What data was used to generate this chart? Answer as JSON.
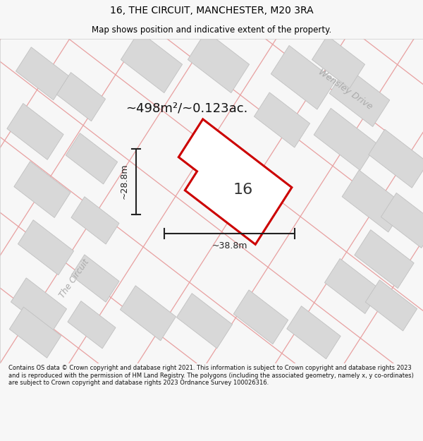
{
  "title": "16, THE CIRCUIT, MANCHESTER, M20 3RA",
  "subtitle": "Map shows position and indicative extent of the property.",
  "area_text": "~498m²/~0.123ac.",
  "width_label": "~38.8m",
  "height_label": "~28.8m",
  "number_label": "16",
  "wensley_drive_label": "Wensley Drive",
  "the_circuit_label": "The Circuit",
  "footer_text": "Contains OS data © Crown copyright and database right 2021. This information is subject to Crown copyright and database rights 2023 and is reproduced with the permission of HM Land Registry. The polygons (including the associated geometry, namely x, y co-ordinates) are subject to Crown copyright and database rights 2023 Ordnance Survey 100026316.",
  "bg_color": "#f7f7f7",
  "map_bg_color": "#f2f2f2",
  "plot_fill_color": "#ffffff",
  "plot_border_color": "#cc0000",
  "road_line_color": "#e8a0a0",
  "building_color": "#d8d8d8",
  "building_border_color": "#c0c0c0",
  "dim_color": "#222222",
  "street_label_color": "#aaaaaa",
  "title_color": "#000000",
  "footer_color": "#111111",
  "map_border_color": "#cccccc"
}
